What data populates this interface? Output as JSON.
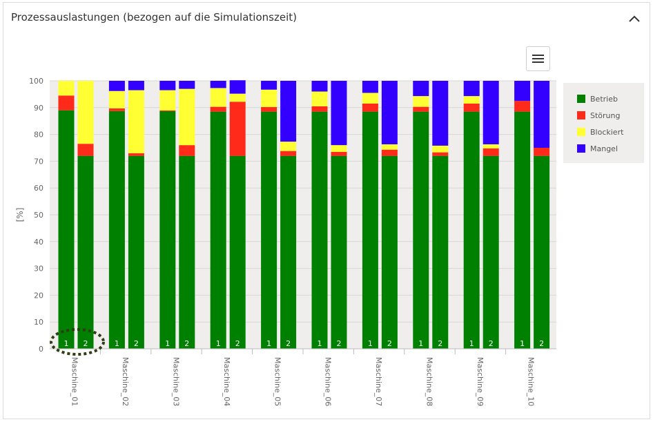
{
  "panel": {
    "title": "Prozessauslastungen (bezogen auf die Simulationszeit)"
  },
  "chart_data": {
    "type": "bar",
    "stacked": true,
    "title": "",
    "xlabel": "",
    "ylabel": "[%]",
    "ylim": [
      0,
      100
    ],
    "yticks": [
      "0",
      "10",
      "20",
      "30",
      "40",
      "50",
      "60",
      "70",
      "80",
      "90",
      "100"
    ],
    "grid": true,
    "legend_position": "right",
    "categories": [
      "Maschine_01",
      "Maschine_02",
      "Maschine_03",
      "Maschine_04",
      "Maschine_05",
      "Maschine_06",
      "Maschine_07",
      "Maschine_08",
      "Maschine_09",
      "Maschine_10"
    ],
    "sub_bars": [
      "1",
      "2"
    ],
    "series": [
      {
        "name": "Betrieb",
        "color": "#008000",
        "values": [
          [
            89,
            72
          ],
          [
            88.7,
            72
          ],
          [
            88.7,
            72
          ],
          [
            88.5,
            72
          ],
          [
            88.5,
            72
          ],
          [
            88.5,
            72
          ],
          [
            88.5,
            72
          ],
          [
            88.5,
            72
          ],
          [
            88.5,
            72
          ],
          [
            88.5,
            72
          ]
        ]
      },
      {
        "name": "Störung",
        "color": "#ff2a1a",
        "values": [
          [
            5.5,
            4.5
          ],
          [
            1,
            1
          ],
          [
            0.3,
            4
          ],
          [
            1.8,
            20.2
          ],
          [
            1.7,
            1.8
          ],
          [
            2,
            1.5
          ],
          [
            3,
            2.3
          ],
          [
            1.8,
            1.3
          ],
          [
            3,
            2.8
          ],
          [
            4,
            3
          ]
        ]
      },
      {
        "name": "Blockiert",
        "color": "#ffff33",
        "values": [
          [
            5.5,
            23.5
          ],
          [
            6.5,
            23.5
          ],
          [
            7.5,
            21
          ],
          [
            7,
            3
          ],
          [
            6.5,
            3.5
          ],
          [
            5.5,
            2.5
          ],
          [
            4,
            2
          ],
          [
            4,
            2.5
          ],
          [
            2.8,
            1.5
          ],
          [
            0,
            0
          ]
        ]
      },
      {
        "name": "Mangel",
        "color": "#3300ff",
        "values": [
          [
            0,
            0
          ],
          [
            3.8,
            3.5
          ],
          [
            3.5,
            3
          ],
          [
            2.7,
            5
          ],
          [
            3.3,
            22.7
          ],
          [
            4,
            24
          ],
          [
            4.5,
            23.7
          ],
          [
            5.7,
            24.2
          ],
          [
            5.7,
            23.7
          ],
          [
            7.5,
            25
          ]
        ]
      }
    ]
  }
}
